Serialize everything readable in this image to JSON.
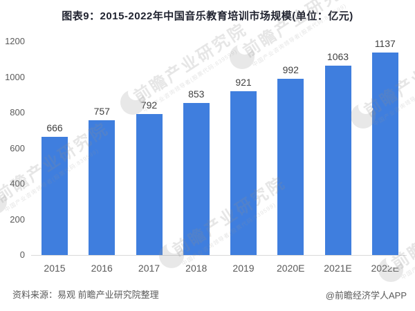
{
  "title": "图表9：2015-2022年中国音乐教育培训市场规模(单位：亿元)",
  "chart_data": {
    "type": "bar",
    "title": "图表9：2015-2022年中国音乐教育培训市场规模(单位：亿元)",
    "categories": [
      "2015",
      "2016",
      "2017",
      "2018",
      "2019",
      "2020E",
      "2021E",
      "2022E"
    ],
    "values": [
      666,
      757,
      792,
      853,
      921,
      992,
      1063,
      1137
    ],
    "xlabel": "",
    "ylabel": "",
    "unit": "亿元",
    "ylim": [
      0,
      1200
    ],
    "yticks": [
      0,
      200,
      400,
      600,
      800,
      1000,
      1200
    ],
    "grid": false,
    "legend": null,
    "bar_color": "#3f7ede"
  },
  "footer": {
    "source": "资料来源：易观 前瞻产业研究院整理",
    "credit": "@前瞻经济学人APP"
  },
  "watermark": {
    "text": "前瞻产业研究院",
    "subtext": "中国产业咨询领导者(股票代码:839599)"
  }
}
